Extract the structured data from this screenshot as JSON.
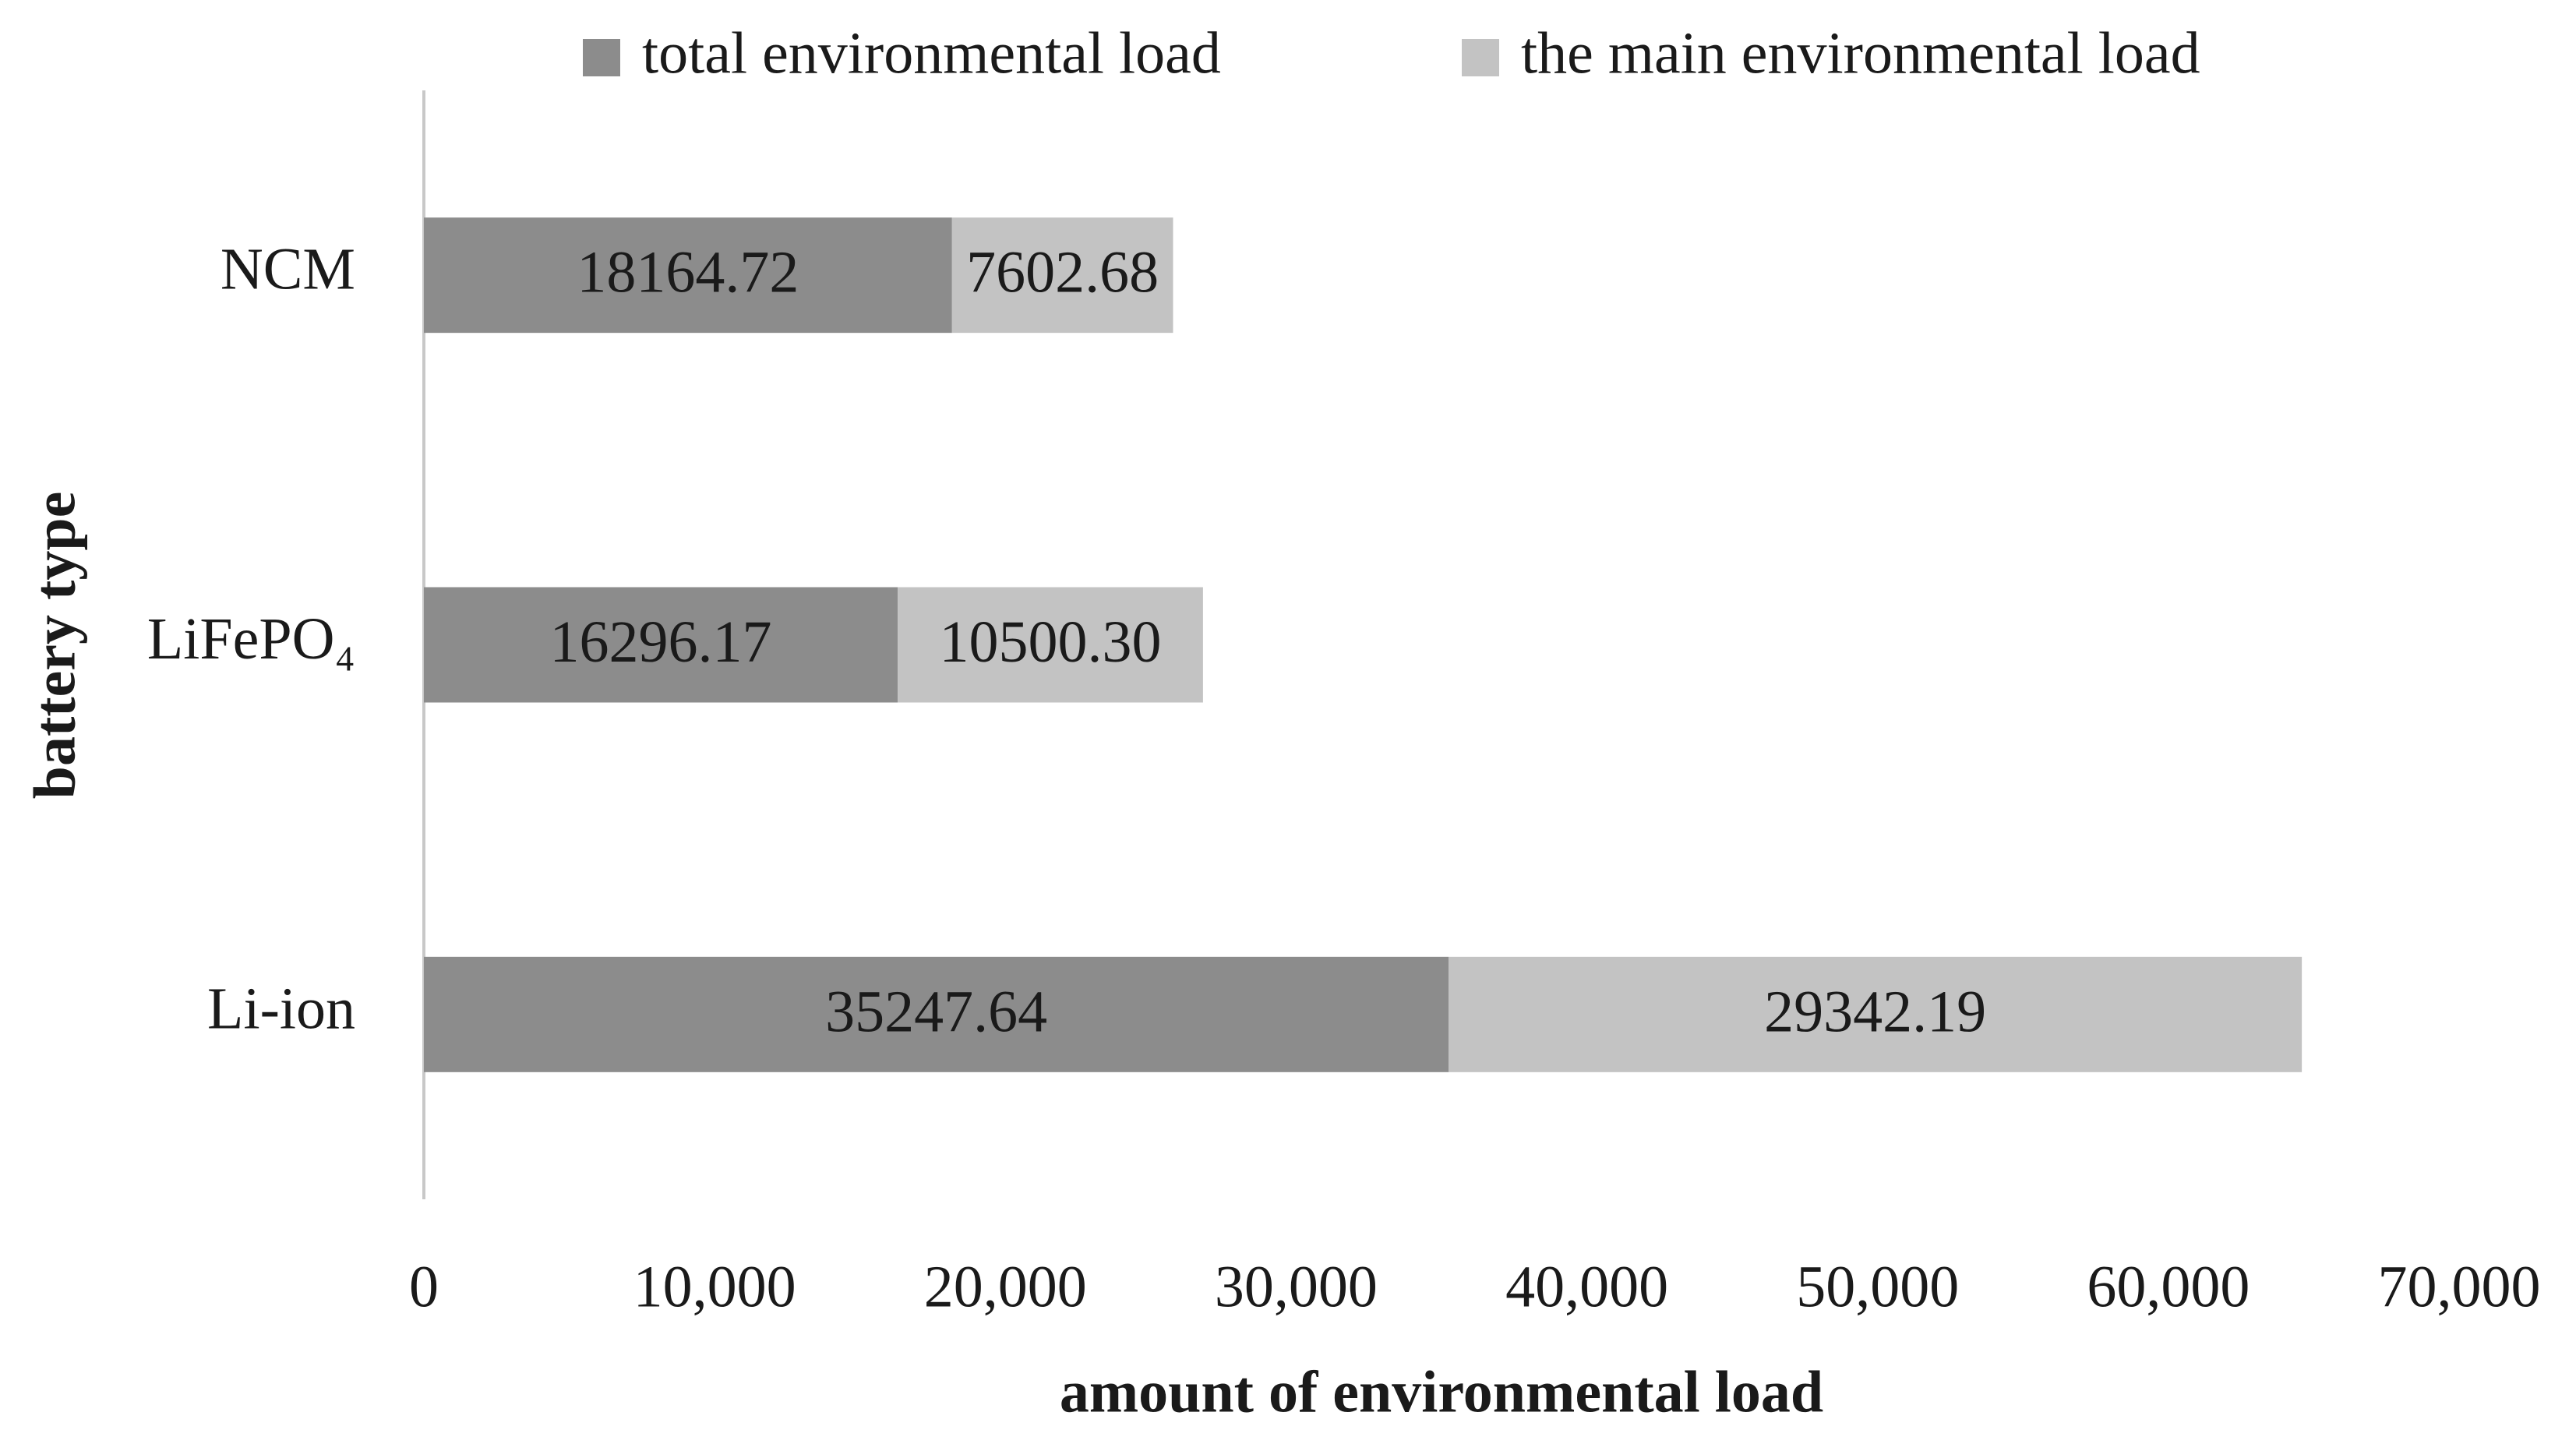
{
  "chart_data": {
    "type": "stacked-bar-horizontal",
    "x_label": "amount of environmental load",
    "y_label": "battery type",
    "categories": [
      "NCM",
      "LiFePO₄",
      "Li-ion"
    ],
    "series": [
      {
        "name": "total environmental load",
        "color": "#8c8c8c",
        "values": [
          18164.72,
          16296.17,
          35247.64
        ]
      },
      {
        "name": "the main environmental load",
        "color": "#c3c3c3",
        "values": [
          7602.68,
          10500.3,
          29342.19
        ],
        "value_labels": [
          "7602.68",
          "10500.30",
          "29342.19"
        ]
      }
    ],
    "xlim": [
      0,
      70000
    ],
    "xticks": [
      0,
      {
        "value": 10000,
        "label": "10,000"
      },
      {
        "value": 20000,
        "label": "20,000"
      },
      {
        "value": 30000,
        "label": "30,000"
      },
      {
        "value": 40000,
        "label": "40,000"
      },
      {
        "value": 50000,
        "label": "50,000"
      },
      {
        "value": 60000,
        "label": "60,000"
      },
      {
        "value": 70000,
        "label": "70,000"
      }
    ],
    "grid": false,
    "legend": "top"
  }
}
